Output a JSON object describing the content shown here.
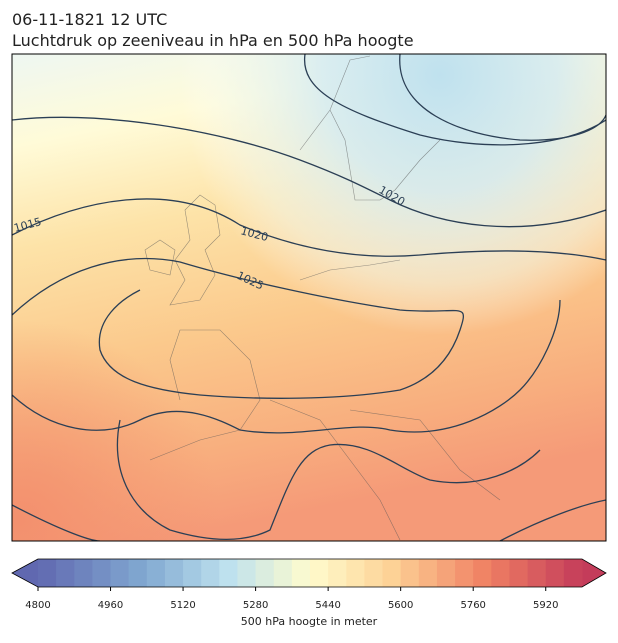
{
  "title": "06-11-1821 12 UTC",
  "subtitle": "Luchtdruk op zeeniveau in hPa en 500 hPa hoogte",
  "contour_labels": [
    1015,
    1020,
    1020,
    1025
  ],
  "colorbar": {
    "label": "500 hPa hoogte in meter",
    "range": [
      4800,
      6000
    ],
    "ticks": [
      4800,
      4960,
      5120,
      5280,
      5440,
      5600,
      5760,
      5920
    ]
  }
}
